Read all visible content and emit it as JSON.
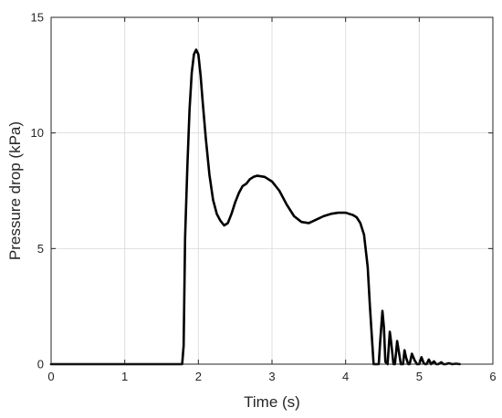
{
  "chart_data": {
    "type": "line",
    "title": "",
    "xlabel": "Time (s)",
    "ylabel": "Pressure drop (kPa)",
    "xlim": [
      0,
      6
    ],
    "ylim": [
      0,
      15
    ],
    "xticks": [
      0,
      1,
      2,
      3,
      4,
      5,
      6
    ],
    "yticks": [
      0,
      5,
      10,
      15
    ],
    "xtick_labels": [
      "0",
      "1",
      "2",
      "3",
      "4",
      "5",
      "6"
    ],
    "ytick_labels": [
      "0",
      "5",
      "10",
      "15"
    ],
    "grid": true,
    "legend": "none",
    "line_color": "#000000",
    "series": [
      {
        "x": [
          0,
          0.3,
          0.6,
          0.9,
          1.2,
          1.5,
          1.75,
          1.78,
          1.8,
          1.82,
          1.85,
          1.88,
          1.91,
          1.94,
          1.97,
          2.0,
          2.03,
          2.06,
          2.1,
          2.15,
          2.2,
          2.25,
          2.3,
          2.35,
          2.4,
          2.45,
          2.5,
          2.55,
          2.6,
          2.65,
          2.7,
          2.75,
          2.8,
          2.9,
          3.0,
          3.1,
          3.2,
          3.3,
          3.4,
          3.5,
          3.6,
          3.7,
          3.8,
          3.9,
          4.0,
          4.1,
          4.15,
          4.2,
          4.25,
          4.3,
          4.33,
          4.36,
          4.38,
          4.4,
          4.42,
          4.45,
          4.47,
          4.5,
          4.52,
          4.54,
          4.57,
          4.6,
          4.62,
          4.65,
          4.67,
          4.7,
          4.72,
          4.75,
          4.78,
          4.8,
          4.82,
          4.85,
          4.87,
          4.9,
          4.94,
          4.97,
          5.0,
          5.03,
          5.06,
          5.08,
          5.1,
          5.13,
          5.16,
          5.2,
          5.23,
          5.26,
          5.3,
          5.33,
          5.36,
          5.4,
          5.45,
          5.5,
          5.55
        ],
        "y": [
          0,
          0,
          0,
          0,
          0,
          0,
          0,
          0,
          0.8,
          5.5,
          8.5,
          11.0,
          12.6,
          13.4,
          13.6,
          13.4,
          12.5,
          11.3,
          9.8,
          8.2,
          7.1,
          6.5,
          6.2,
          6.0,
          6.1,
          6.5,
          7.0,
          7.4,
          7.7,
          7.8,
          8.0,
          8.1,
          8.15,
          8.1,
          7.9,
          7.5,
          6.9,
          6.4,
          6.15,
          6.1,
          6.25,
          6.4,
          6.5,
          6.55,
          6.55,
          6.45,
          6.35,
          6.1,
          5.6,
          4.2,
          2.5,
          1.0,
          0,
          0,
          0,
          0,
          1.0,
          2.3,
          1.6,
          0.1,
          0,
          1.4,
          0.9,
          0,
          0,
          1.0,
          0.6,
          0,
          0,
          0.6,
          0.3,
          0,
          0,
          0.45,
          0.15,
          0,
          0,
          0.3,
          0.05,
          0,
          0,
          0.2,
          0,
          0.12,
          0,
          0,
          0.08,
          0,
          0,
          0.04,
          0,
          0.02,
          0
        ]
      }
    ]
  }
}
